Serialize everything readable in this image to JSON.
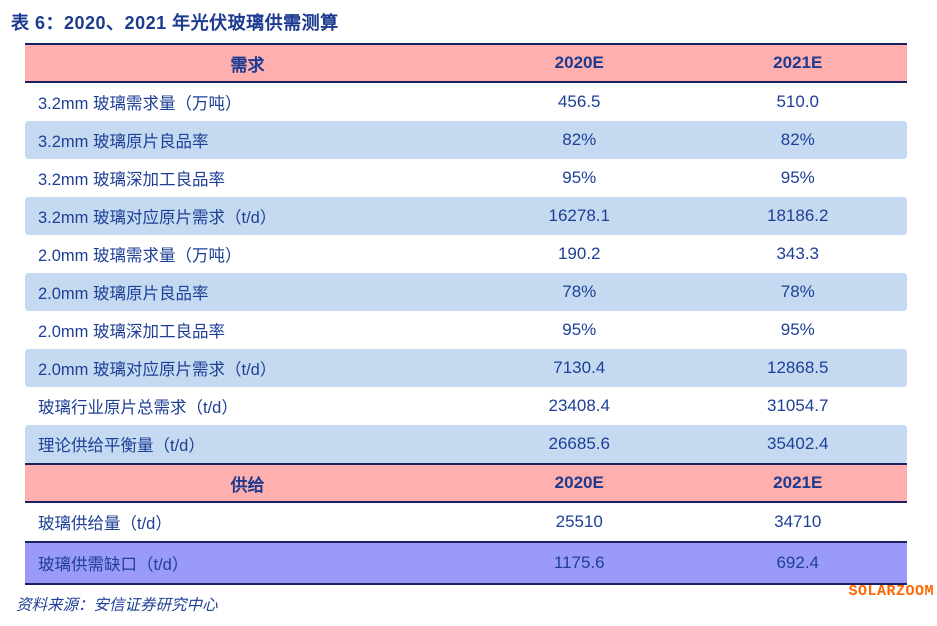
{
  "title": "表 6：2020、2021 年光伏玻璃供需测算",
  "source_note": "资料来源：安信证券研究中心",
  "watermark": "SOLARZOOM",
  "colors": {
    "section_header_pink": "#ffafad",
    "row_light_blue": "#c5daf1",
    "row_purple": "#9a9bf8",
    "border_navy": "#1b2060",
    "text_navy": "#1e3f96",
    "watermark_orange": "#ff6600"
  },
  "table": {
    "columns": [
      "2020E",
      "2021E"
    ],
    "sections": [
      {
        "header": "需求",
        "rows": [
          {
            "label": "3.2mm 玻璃需求量（万吨）",
            "values": [
              "456.5",
              "510.0"
            ],
            "bg": "white"
          },
          {
            "label": "3.2mm 玻璃原片良品率",
            "values": [
              "82%",
              "82%"
            ],
            "bg": "blue"
          },
          {
            "label": "3.2mm 玻璃深加工良品率",
            "values": [
              "95%",
              "95%"
            ],
            "bg": "white"
          },
          {
            "label": "3.2mm 玻璃对应原片需求（t/d）",
            "values": [
              "16278.1",
              "18186.2"
            ],
            "bg": "blue"
          },
          {
            "label": "2.0mm 玻璃需求量（万吨）",
            "values": [
              "190.2",
              "343.3"
            ],
            "bg": "white"
          },
          {
            "label": "2.0mm 玻璃原片良品率",
            "values": [
              "78%",
              "78%"
            ],
            "bg": "blue"
          },
          {
            "label": "2.0mm 玻璃深加工良品率",
            "values": [
              "95%",
              "95%"
            ],
            "bg": "white"
          },
          {
            "label": "2.0mm 玻璃对应原片需求（t/d）",
            "values": [
              "7130.4",
              "12868.5"
            ],
            "bg": "blue"
          },
          {
            "label": "玻璃行业原片总需求（t/d）",
            "values": [
              "23408.4",
              "31054.7"
            ],
            "bg": "white"
          },
          {
            "label": "理论供给平衡量（t/d）",
            "values": [
              "26685.6",
              "35402.4"
            ],
            "bg": "blue"
          }
        ]
      },
      {
        "header": "供给",
        "rows": [
          {
            "label": "玻璃供给量（t/d）",
            "values": [
              "25510",
              "34710"
            ],
            "bg": "white"
          },
          {
            "label": "玻璃供需缺口（t/d）",
            "values": [
              "1175.6",
              "692.4"
            ],
            "bg": "purple"
          }
        ]
      }
    ]
  }
}
